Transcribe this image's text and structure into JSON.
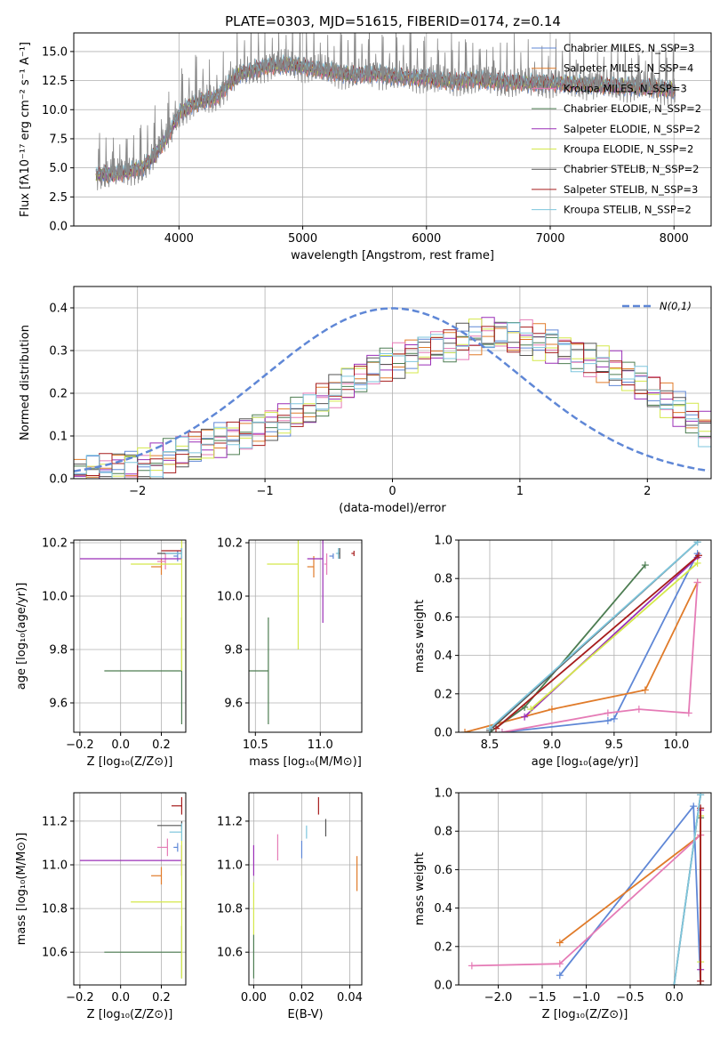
{
  "title": "PLATE=0303, MJD=51615, FIBERID=0174, z=0.14",
  "colors": {
    "models": [
      "#5f87d6",
      "#e07b2a",
      "#e57bb6",
      "#4d7d52",
      "#9a2fb7",
      "#d4e84a",
      "#555555",
      "#a61c1c",
      "#7ec6dd"
    ],
    "gauss": "#5f87d6"
  },
  "chart_data": [
    {
      "id": "spectrum",
      "type": "line",
      "xlabel": "wavelength [Angstrom, rest frame]",
      "ylabel": "Flux [fλ10⁻¹⁷ erg cm⁻² s⁻¹ A⁻¹]",
      "xlim": [
        3150,
        8300
      ],
      "ylim": [
        0,
        16.6
      ],
      "xticks": [
        4000,
        5000,
        6000,
        7000,
        8000
      ],
      "yticks": [
        0,
        2.5,
        5.0,
        7.5,
        10.0,
        12.5,
        15.0
      ],
      "ytick_labels": [
        "0.0",
        "2.5",
        "5.0",
        "7.5",
        "10.0",
        "12.5",
        "15.0"
      ],
      "legend": [
        "Chabrier MILES, N_SSP=3",
        "Salpeter MILES, N_SSP=4",
        "Kroupa MILES, N_SSP=3",
        "Chabrier ELODIE, N_SSP=2",
        "Salpeter ELODIE, N_SSP=2",
        "Kroupa ELODIE, N_SSP=2",
        "Chabrier STELIB, N_SSP=2",
        "Salpeter STELIB, N_SSP=3",
        "Kroupa STELIB, N_SSP=2"
      ],
      "legend_loc": "upper-right",
      "observed_curve": {
        "x": [
          3330,
          3500,
          3600,
          3700,
          3800,
          3900,
          4000,
          4100,
          4200,
          4300,
          4400,
          4500,
          4600,
          4700,
          4800,
          4900,
          5000,
          5200,
          5400,
          5600,
          5800,
          6000,
          6200,
          6400,
          6600,
          6800,
          7000,
          7200,
          7400,
          7600,
          7800,
          8000
        ],
        "y": [
          4.4,
          4.5,
          4.7,
          5.0,
          6.0,
          7.6,
          9.6,
          10.4,
          10.8,
          11.0,
          12.2,
          13.1,
          13.4,
          13.7,
          13.8,
          13.9,
          13.7,
          13.3,
          13.0,
          13.1,
          12.8,
          12.7,
          12.4,
          12.6,
          12.4,
          12.3,
          12.3,
          12.2,
          12.1,
          12.0,
          11.9,
          11.7
        ]
      }
    },
    {
      "id": "residuals",
      "type": "line",
      "xlabel": "(data-model)/error",
      "ylabel": "Normed distribution",
      "xlim": [
        -2.5,
        2.5
      ],
      "ylim": [
        0,
        0.45
      ],
      "xticks": [
        -2,
        -1,
        0,
        1,
        2
      ],
      "xtick_labels": [
        "−2",
        "−1",
        "0",
        "1",
        "2"
      ],
      "yticks": [
        0,
        0.1,
        0.2,
        0.3,
        0.4
      ],
      "ytick_labels": [
        "0.0",
        "0.1",
        "0.2",
        "0.3",
        "0.4"
      ],
      "legend": [
        "N(0,1)"
      ],
      "legend_loc": "upper-right",
      "gaussian": {
        "mu": 0,
        "sigma": 1
      },
      "histogram_bin_centers": [
        -2.45,
        -2.35,
        -2.25,
        -2.15,
        -2.05,
        -1.95,
        -1.85,
        -1.75,
        -1.65,
        -1.55,
        -1.45,
        -1.35,
        -1.25,
        -1.15,
        -1.05,
        -0.95,
        -0.85,
        -0.75,
        -0.65,
        -0.55,
        -0.45,
        -0.35,
        -0.25,
        -0.15,
        -0.05,
        0.05,
        0.15,
        0.25,
        0.35,
        0.45,
        0.55,
        0.65,
        0.75,
        0.85,
        0.95,
        1.05,
        1.15,
        1.25,
        1.35,
        1.45,
        1.55,
        1.65,
        1.75,
        1.85,
        1.95,
        2.05,
        2.15,
        2.25,
        2.35,
        2.45
      ],
      "histogram_values": [
        0.01,
        0.015,
        0.02,
        0.025,
        0.03,
        0.035,
        0.04,
        0.05,
        0.06,
        0.07,
        0.08,
        0.09,
        0.1,
        0.11,
        0.12,
        0.13,
        0.14,
        0.15,
        0.16,
        0.18,
        0.2,
        0.22,
        0.24,
        0.26,
        0.27,
        0.28,
        0.29,
        0.3,
        0.31,
        0.31,
        0.32,
        0.33,
        0.34,
        0.34,
        0.33,
        0.33,
        0.32,
        0.31,
        0.3,
        0.29,
        0.28,
        0.27,
        0.26,
        0.24,
        0.22,
        0.2,
        0.18,
        0.16,
        0.14,
        0.12
      ]
    },
    {
      "id": "age_vs_Z",
      "type": "scatter",
      "xlabel": "Z [log₁₀(Z/Z⊙)]",
      "ylabel": "age  [log₁₀(age/yr)]",
      "xlim": [
        -0.23,
        0.32
      ],
      "ylim": [
        9.49,
        10.21
      ],
      "xticks": [
        -0.2,
        0.0,
        0.2
      ],
      "xtick_labels": [
        "−0.2",
        "0.0",
        "0.2"
      ],
      "yticks": [
        9.6,
        9.8,
        10.0,
        10.2
      ],
      "ytick_labels": [
        "9.6",
        "9.8",
        "10.0",
        "10.2"
      ],
      "points": [
        {
          "x": 0.28,
          "y": 10.15,
          "xerr": 0.02,
          "yerr": 0.02
        },
        {
          "x": 0.2,
          "y": 10.11,
          "xerr": 0.05,
          "yerr": 0.03
        },
        {
          "x": 0.22,
          "y": 10.13,
          "xerr": 0.04,
          "yerr": 0.03
        },
        {
          "x": 0.3,
          "y": 9.72,
          "xerr": 0.38,
          "yerr": 0.2
        },
        {
          "x": 0.3,
          "y": 10.14,
          "xerr": 0.5,
          "yerr": 0.01
        },
        {
          "x": 0.3,
          "y": 10.12,
          "xerr": 0.25,
          "yerr": 0.4
        },
        {
          "x": 0.3,
          "y": 10.16,
          "xerr": 0.12,
          "yerr": 0.02
        },
        {
          "x": 0.3,
          "y": 10.17,
          "xerr": 0.1,
          "yerr": 0.01
        },
        {
          "x": 0.3,
          "y": 10.16,
          "xerr": 0.08,
          "yerr": 0.02
        }
      ]
    },
    {
      "id": "age_vs_mass",
      "type": "scatter",
      "xlabel": "mass [log₁₀(M/M⊙)]",
      "ylabel": "",
      "xlim": [
        10.45,
        11.32
      ],
      "ylim": [
        9.49,
        10.21
      ],
      "xticks": [
        10.5,
        11.0
      ],
      "xtick_labels": [
        "10.5",
        "11.0"
      ],
      "yticks": [
        9.6,
        9.8,
        10.0,
        10.2
      ],
      "ytick_labels": [
        "9.6",
        "9.8",
        "10.0",
        "10.2"
      ],
      "points": [
        {
          "x": 11.1,
          "y": 10.15,
          "xerr": 0.03,
          "yerr": 0.01
        },
        {
          "x": 10.95,
          "y": 10.11,
          "xerr": 0.05,
          "yerr": 0.04
        },
        {
          "x": 11.05,
          "y": 10.12,
          "xerr": 0.02,
          "yerr": 0.04
        },
        {
          "x": 10.6,
          "y": 9.72,
          "xerr": 0.3,
          "yerr": 0.2
        },
        {
          "x": 11.02,
          "y": 10.14,
          "xerr": 0.12,
          "yerr": 0.24
        },
        {
          "x": 10.83,
          "y": 10.12,
          "xerr": 0.24,
          "yerr": 0.32
        },
        {
          "x": 11.15,
          "y": 10.16,
          "xerr": 0.02,
          "yerr": 0.02
        },
        {
          "x": 11.26,
          "y": 10.16,
          "xerr": 0.02,
          "yerr": 0.01
        },
        {
          "x": 11.14,
          "y": 10.16,
          "xerr": 0.02,
          "yerr": 0.02
        }
      ]
    },
    {
      "id": "massweight_vs_age",
      "type": "line",
      "xlabel": "age  [log₁₀(age/yr)]",
      "ylabel": "mass weight",
      "xlim": [
        8.25,
        10.28
      ],
      "ylim": [
        0,
        1.0
      ],
      "xticks": [
        8.5,
        9.0,
        9.5,
        10.0
      ],
      "xtick_labels": [
        "8.5",
        "9.0",
        "9.5",
        "10.0"
      ],
      "yticks": [
        0,
        0.2,
        0.4,
        0.6,
        0.8,
        1.0
      ],
      "ytick_labels": [
        "0.0",
        "0.2",
        "0.4",
        "0.6",
        "0.8",
        "1.0"
      ],
      "series": [
        {
          "x": [
            8.6,
            9.45,
            9.5,
            10.17
          ],
          "y": [
            0.0,
            0.06,
            0.07,
            0.93
          ]
        },
        {
          "x": [
            8.3,
            9.0,
            9.75,
            10.17
          ],
          "y": [
            0.0,
            0.12,
            0.22,
            0.78
          ]
        },
        {
          "x": [
            8.6,
            9.45,
            9.7,
            10.1,
            10.17
          ],
          "y": [
            0.0,
            0.1,
            0.12,
            0.1,
            0.78
          ]
        },
        {
          "x": [
            8.5,
            8.78,
            9.75
          ],
          "y": [
            0.0,
            0.13,
            0.87
          ]
        },
        {
          "x": [
            8.78,
            10.17
          ],
          "y": [
            0.08,
            0.91
          ]
        },
        {
          "x": [
            8.83,
            10.17
          ],
          "y": [
            0.12,
            0.88
          ]
        },
        {
          "x": [
            8.5,
            10.17
          ],
          "y": [
            0.01,
            0.99
          ]
        },
        {
          "x": [
            8.55,
            10.18
          ],
          "y": [
            0.02,
            0.92
          ]
        },
        {
          "x": [
            8.5,
            10.17
          ],
          "y": [
            0.02,
            0.99
          ]
        }
      ]
    },
    {
      "id": "mass_vs_Z",
      "type": "scatter",
      "xlabel": "Z [log₁₀(Z/Z⊙)]",
      "ylabel": "mass [log₁₀(M/M⊙)]",
      "xlim": [
        -0.23,
        0.32
      ],
      "ylim": [
        10.45,
        11.33
      ],
      "xticks": [
        -0.2,
        0.0,
        0.2
      ],
      "xtick_labels": [
        "−0.2",
        "0.0",
        "0.2"
      ],
      "yticks": [
        10.6,
        10.8,
        11.0,
        11.2
      ],
      "ytick_labels": [
        "10.6",
        "10.8",
        "11.0",
        "11.2"
      ],
      "points": [
        {
          "x": 0.28,
          "y": 11.08,
          "xerr": 0.02,
          "yerr": 0.02
        },
        {
          "x": 0.2,
          "y": 10.95,
          "xerr": 0.05,
          "yerr": 0.04
        },
        {
          "x": 0.23,
          "y": 11.08,
          "xerr": 0.05,
          "yerr": 0.04
        },
        {
          "x": 0.3,
          "y": 10.6,
          "xerr": 0.38,
          "yerr": 0.12
        },
        {
          "x": 0.3,
          "y": 11.02,
          "xerr": 0.5,
          "yerr": 0.07
        },
        {
          "x": 0.3,
          "y": 10.83,
          "xerr": 0.25,
          "yerr": 0.35
        },
        {
          "x": 0.3,
          "y": 11.18,
          "xerr": 0.12,
          "yerr": 0.02
        },
        {
          "x": 0.3,
          "y": 11.27,
          "xerr": 0.05,
          "yerr": 0.04
        },
        {
          "x": 0.3,
          "y": 11.15,
          "xerr": 0.06,
          "yerr": 0.04
        }
      ]
    },
    {
      "id": "mass_vs_ebv",
      "type": "scatter",
      "xlabel": "E(B-V)",
      "ylabel": "",
      "xlim": [
        -0.002,
        0.045
      ],
      "ylim": [
        10.45,
        11.33
      ],
      "xticks": [
        0.0,
        0.02,
        0.04
      ],
      "xtick_labels": [
        "0.00",
        "0.02",
        "0.04"
      ],
      "yticks": [
        10.6,
        10.8,
        11.0,
        11.2
      ],
      "ytick_labels": [
        "10.6",
        "10.8",
        "11.0",
        "11.2"
      ],
      "points": [
        {
          "x": 0.02,
          "y": 11.07,
          "yerr": 0.04
        },
        {
          "x": 0.043,
          "y": 10.96,
          "yerr": 0.08
        },
        {
          "x": 0.01,
          "y": 11.08,
          "yerr": 0.06
        },
        {
          "x": 0.0,
          "y": 10.58,
          "yerr": 0.1
        },
        {
          "x": 0.0,
          "y": 11.02,
          "yerr": 0.07
        },
        {
          "x": 0.0,
          "y": 10.8,
          "yerr": 0.12
        },
        {
          "x": 0.03,
          "y": 11.17,
          "yerr": 0.04
        },
        {
          "x": 0.027,
          "y": 11.27,
          "yerr": 0.04
        },
        {
          "x": 0.022,
          "y": 11.15,
          "yerr": 0.03
        }
      ]
    },
    {
      "id": "massweight_vs_Z",
      "type": "line",
      "xlabel": "Z [log₁₀(Z/Z⊙)]",
      "ylabel": "mass weight",
      "xlim": [
        -2.45,
        0.42
      ],
      "ylim": [
        0,
        1.0
      ],
      "xticks": [
        -2.0,
        -1.5,
        -1.0,
        -0.5,
        0.0
      ],
      "xtick_labels": [
        "−2.0",
        "−1.5",
        "−1.0",
        "−0.5",
        "0.0"
      ],
      "yticks": [
        0,
        0.2,
        0.4,
        0.6,
        0.8,
        1.0
      ],
      "ytick_labels": [
        "0.0",
        "0.2",
        "0.4",
        "0.6",
        "0.8",
        "1.0"
      ],
      "series": [
        {
          "x": [
            -1.3,
            0.22,
            0.3
          ],
          "y": [
            0.05,
            0.93,
            0.0
          ]
        },
        {
          "x": [
            -1.3,
            0.3,
            0.3
          ],
          "y": [
            0.22,
            0.78,
            0.0
          ]
        },
        {
          "x": [
            -2.3,
            -1.3,
            0.3,
            0.3
          ],
          "y": [
            0.1,
            0.11,
            0.78,
            0.0
          ]
        },
        {
          "x": [
            0.3,
            0.3
          ],
          "y": [
            0.0,
            0.87
          ]
        },
        {
          "x": [
            0.3,
            0.3
          ],
          "y": [
            0.08,
            0.91
          ]
        },
        {
          "x": [
            0.3,
            0.3
          ],
          "y": [
            0.12,
            0.88
          ]
        },
        {
          "x": [
            0.0,
            0.3
          ],
          "y": [
            0.0,
            0.99
          ]
        },
        {
          "x": [
            0.3,
            0.3
          ],
          "y": [
            0.02,
            0.92
          ]
        },
        {
          "x": [
            0.0,
            0.3
          ],
          "y": [
            0.0,
            0.99
          ]
        }
      ]
    }
  ]
}
